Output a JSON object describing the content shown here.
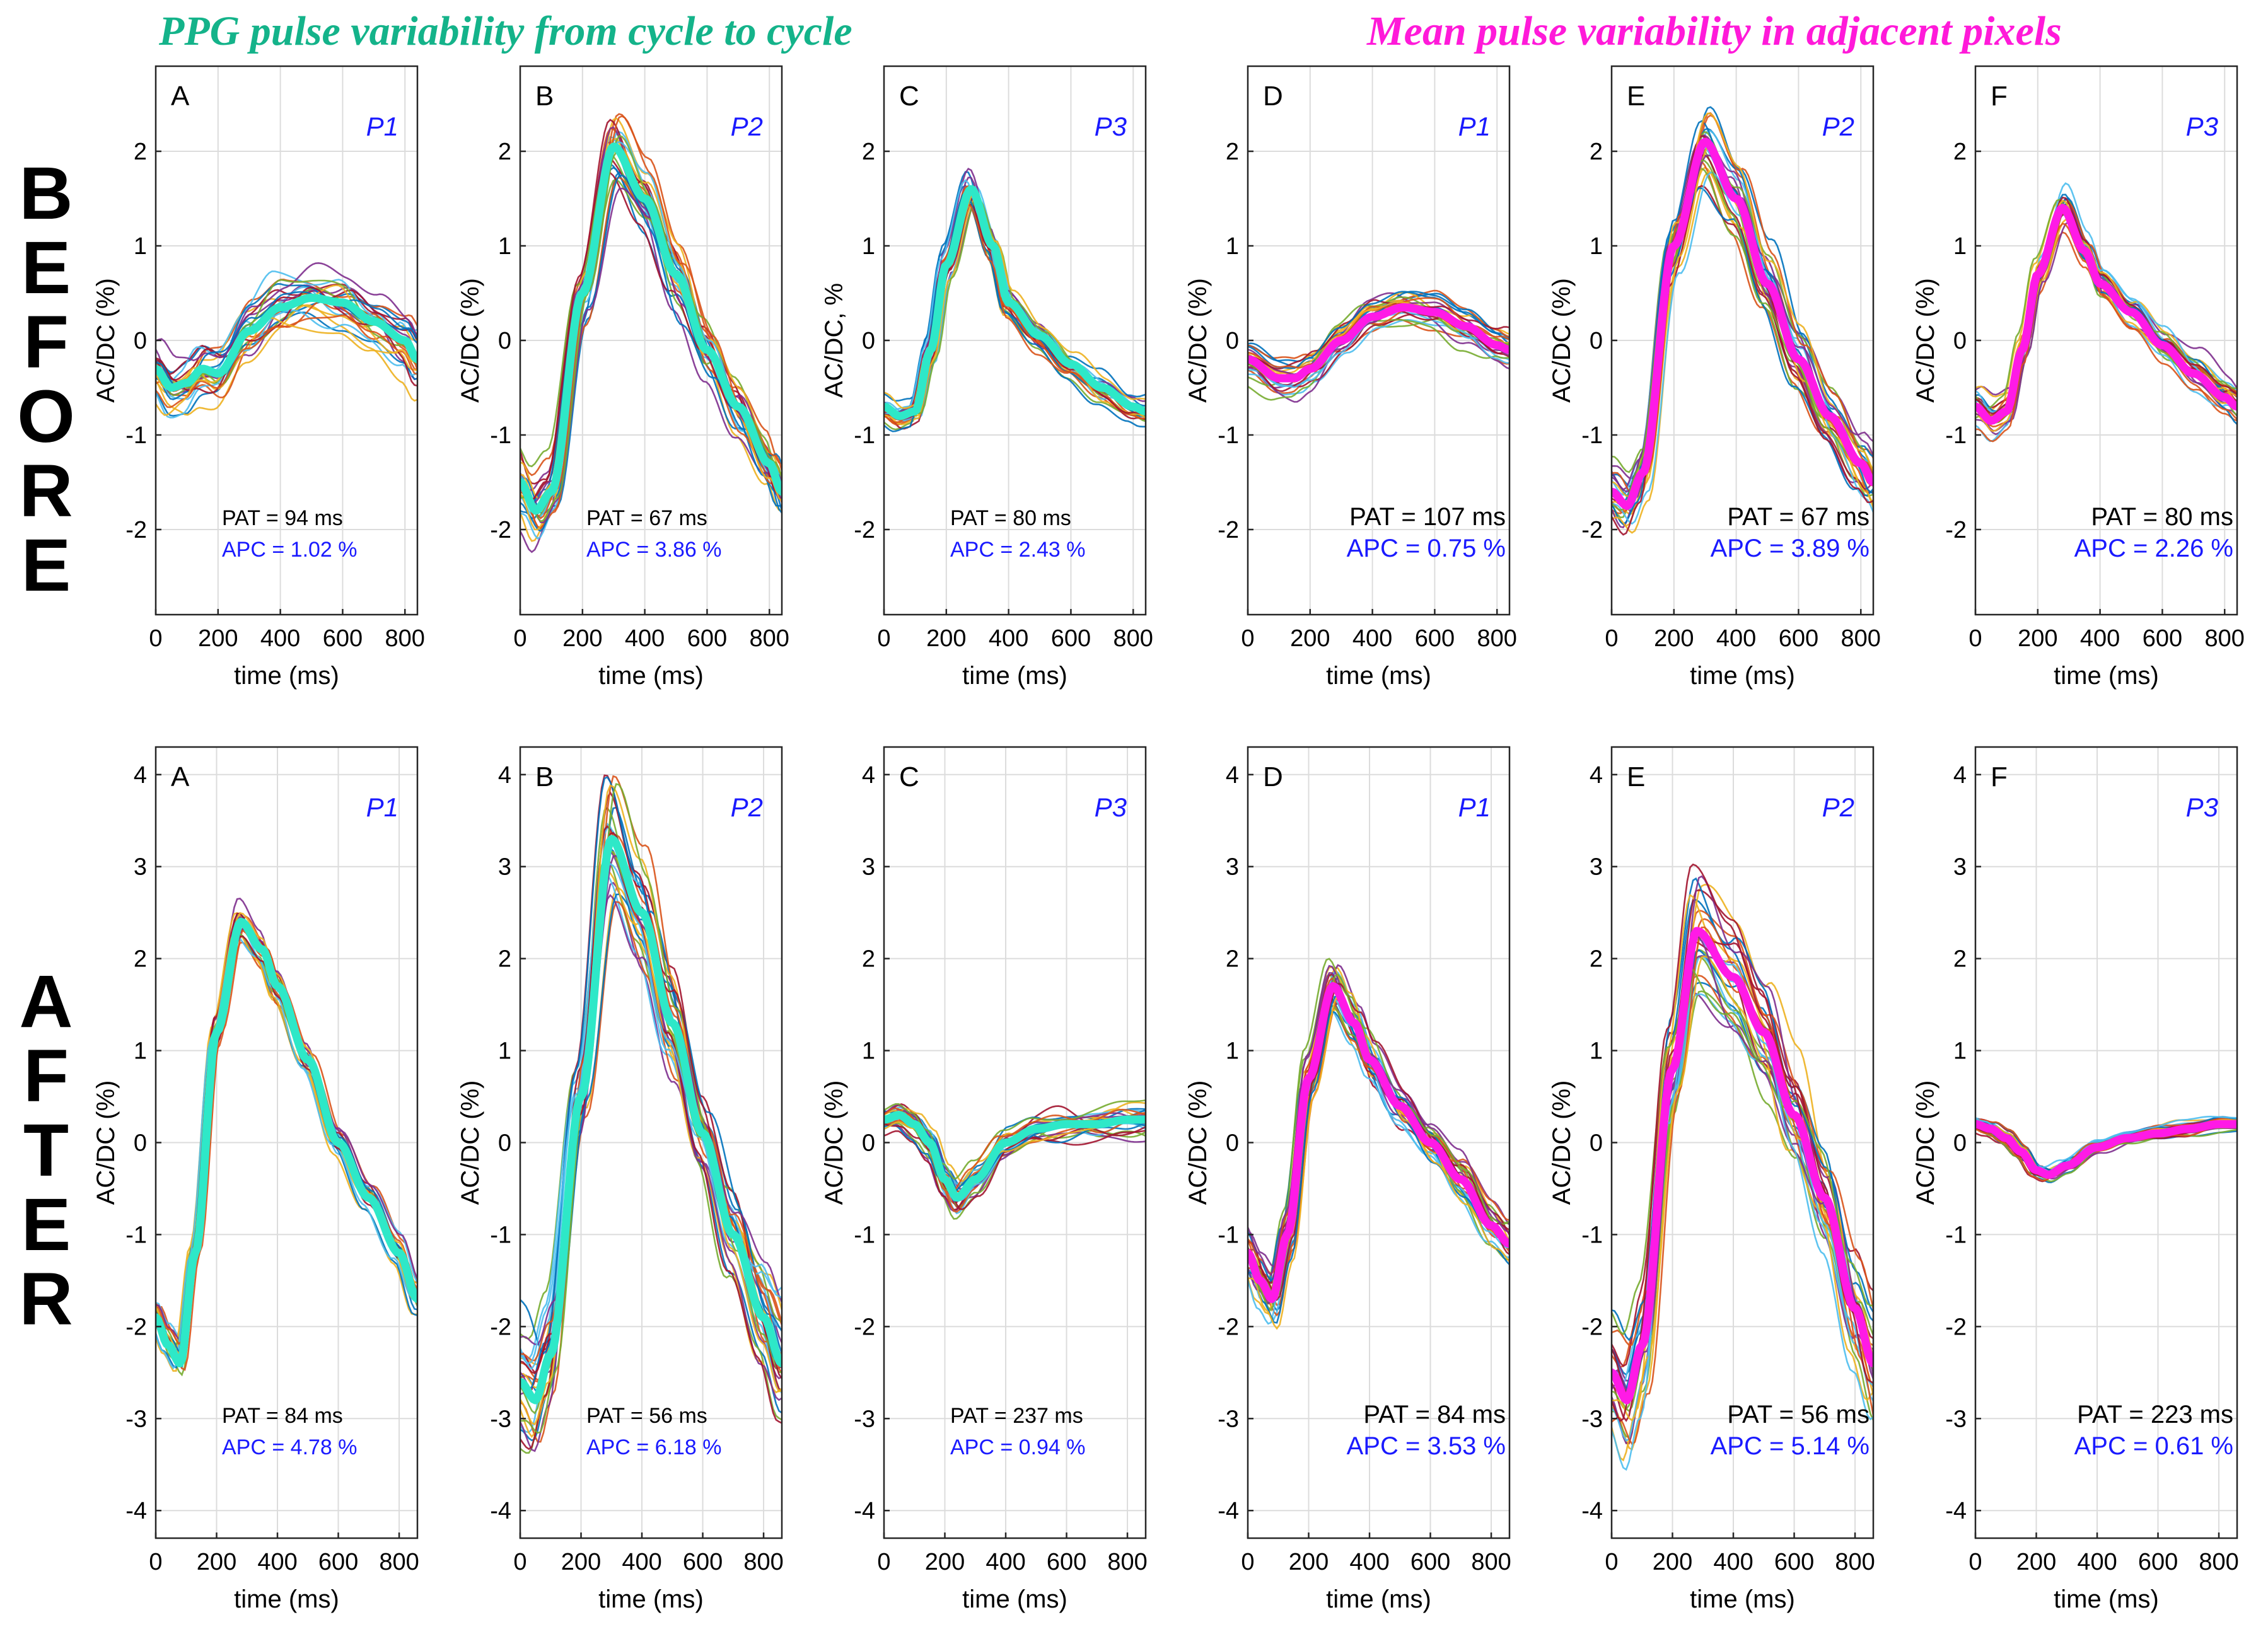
{
  "headers": {
    "left": "PPG pulse variability from cycle to cycle",
    "right": "Mean pulse variability in adjacent pixels",
    "left_color": "#14b38a",
    "right_color": "#ff1ad9"
  },
  "row_labels": {
    "before": [
      "B",
      "E",
      "F",
      "O",
      "R",
      "E"
    ],
    "after": [
      "A",
      "F",
      "T",
      "E",
      "R"
    ]
  },
  "colors": {
    "cyan_mean": "#2ee8c8",
    "magenta_mean": "#ff1ae6",
    "apc_text": "#1a1aff",
    "pname_text": "#1a1aff"
  },
  "chart_data": [
    {
      "type": "line",
      "row": "before",
      "letter": "A",
      "pname": "P1",
      "ylabel": "AC/DC (%)",
      "xlabel": "time (ms)",
      "xlim": [
        0,
        840
      ],
      "ylim": [
        -2.9,
        2.9
      ],
      "yticks": [
        -2,
        -1,
        0,
        1,
        2
      ],
      "xticks": [
        0,
        200,
        400,
        600,
        800
      ],
      "pat": "PAT = 94 ms",
      "apc": "APC = 1.02 %",
      "mean_style": "cyan",
      "spread": 0.32,
      "n_traces": 24,
      "mean": {
        "x": [
          0,
          50,
          100,
          150,
          200,
          300,
          400,
          500,
          600,
          700,
          800,
          840
        ],
        "y": [
          -0.3,
          -0.5,
          -0.45,
          -0.3,
          -0.35,
          0.1,
          0.35,
          0.45,
          0.4,
          0.2,
          0.0,
          -0.2
        ]
      }
    },
    {
      "type": "line",
      "row": "before",
      "letter": "B",
      "pname": "P2",
      "ylabel": "AC/DC (%)",
      "xlabel": "time (ms)",
      "xlim": [
        0,
        840
      ],
      "ylim": [
        -2.9,
        2.9
      ],
      "yticks": [
        -2,
        -1,
        0,
        1,
        2
      ],
      "xticks": [
        0,
        200,
        400,
        600,
        800
      ],
      "pat": "PAT = 67 ms",
      "apc": "APC = 3.86 %",
      "mean_style": "cyan",
      "spread": 0.3,
      "n_traces": 26,
      "mean": {
        "x": [
          0,
          50,
          100,
          200,
          300,
          400,
          500,
          600,
          700,
          800,
          840
        ],
        "y": [
          -1.5,
          -1.8,
          -1.6,
          0.5,
          2.05,
          1.5,
          0.7,
          -0.1,
          -0.7,
          -1.3,
          -1.6
        ]
      }
    },
    {
      "type": "line",
      "row": "before",
      "letter": "C",
      "pname": "P3",
      "ylabel": "AC/DC, %",
      "xlabel": "time (ms)",
      "xlim": [
        0,
        840
      ],
      "ylim": [
        -2.9,
        2.9
      ],
      "yticks": [
        -2,
        -1,
        0,
        1,
        2
      ],
      "xticks": [
        0,
        200,
        400,
        600,
        800
      ],
      "pat": "PAT = 80 ms",
      "apc": "APC = 2.43 %",
      "mean_style": "cyan",
      "spread": 0.15,
      "n_traces": 24,
      "mean": {
        "x": [
          0,
          50,
          100,
          150,
          200,
          280,
          350,
          400,
          500,
          600,
          700,
          800,
          840
        ],
        "y": [
          -0.7,
          -0.8,
          -0.75,
          -0.1,
          0.8,
          1.6,
          1.0,
          0.4,
          0.05,
          -0.25,
          -0.5,
          -0.7,
          -0.75
        ]
      }
    },
    {
      "type": "line",
      "row": "before",
      "letter": "D",
      "pname": "P1",
      "ylabel": "AC/DC (%)",
      "xlabel": "time (ms)",
      "xlim": [
        0,
        840
      ],
      "ylim": [
        -2.9,
        2.9
      ],
      "yticks": [
        -2,
        -1,
        0,
        1,
        2
      ],
      "xticks": [
        0,
        200,
        400,
        600,
        800
      ],
      "pat": "PAT = 107 ms",
      "apc": "APC = 0.75 %",
      "mean_style": "magenta",
      "spread": 0.18,
      "n_traces": 24,
      "mean": {
        "x": [
          0,
          100,
          150,
          200,
          300,
          400,
          500,
          600,
          700,
          800,
          840
        ],
        "y": [
          -0.2,
          -0.4,
          -0.4,
          -0.3,
          0.0,
          0.25,
          0.35,
          0.3,
          0.15,
          -0.05,
          -0.1
        ]
      }
    },
    {
      "type": "line",
      "row": "before",
      "letter": "E",
      "pname": "P2",
      "ylabel": "AC/DC (%)",
      "xlabel": "time (ms)",
      "xlim": [
        0,
        840
      ],
      "ylim": [
        -2.9,
        2.9
      ],
      "yticks": [
        -2,
        -1,
        0,
        1,
        2
      ],
      "xticks": [
        0,
        200,
        400,
        600,
        800
      ],
      "pat": "PAT = 67 ms",
      "apc": "APC = 3.89 %",
      "mean_style": "magenta",
      "spread": 0.3,
      "n_traces": 26,
      "mean": {
        "x": [
          0,
          50,
          100,
          200,
          300,
          400,
          500,
          600,
          700,
          800,
          840
        ],
        "y": [
          -1.6,
          -1.75,
          -1.4,
          1.0,
          2.1,
          1.5,
          0.6,
          -0.2,
          -0.8,
          -1.3,
          -1.5
        ]
      }
    },
    {
      "type": "line",
      "row": "before",
      "letter": "F",
      "pname": "P3",
      "ylabel": "AC/DC (%)",
      "xlabel": "time (ms)",
      "xlim": [
        0,
        840
      ],
      "ylim": [
        -2.9,
        2.9
      ],
      "yticks": [
        -2,
        -1,
        0,
        1,
        2
      ],
      "xticks": [
        0,
        200,
        400,
        600,
        800
      ],
      "pat": "PAT = 80 ms",
      "apc": "APC = 2.26 %",
      "mean_style": "magenta",
      "spread": 0.2,
      "n_traces": 24,
      "mean": {
        "x": [
          0,
          50,
          100,
          150,
          200,
          280,
          350,
          400,
          500,
          600,
          700,
          800,
          840
        ],
        "y": [
          -0.7,
          -0.85,
          -0.75,
          -0.1,
          0.7,
          1.4,
          0.95,
          0.6,
          0.3,
          -0.05,
          -0.35,
          -0.6,
          -0.7
        ]
      }
    },
    {
      "type": "line",
      "row": "after",
      "letter": "A",
      "pname": "P1",
      "ylabel": "AC/DC (%)",
      "xlabel": "time (ms)",
      "xlim": [
        0,
        860
      ],
      "ylim": [
        -4.3,
        4.3
      ],
      "yticks": [
        -4,
        -3,
        -2,
        -1,
        0,
        1,
        2,
        3,
        4
      ],
      "xticks": [
        0,
        200,
        400,
        600,
        800
      ],
      "pat": "PAT = 84 ms",
      "apc": "APC = 4.78 %",
      "mean_style": "cyan",
      "spread": 0.15,
      "n_traces": 24,
      "mean": {
        "x": [
          0,
          40,
          80,
          130,
          200,
          280,
          350,
          400,
          500,
          600,
          700,
          800,
          860
        ],
        "y": [
          -1.9,
          -2.2,
          -2.4,
          -1.2,
          1.2,
          2.4,
          2.1,
          1.7,
          0.9,
          0.0,
          -0.6,
          -1.2,
          -1.7
        ]
      }
    },
    {
      "type": "line",
      "row": "after",
      "letter": "B",
      "pname": "P2",
      "ylabel": "AC/DC (%)",
      "xlabel": "time (ms)",
      "xlim": [
        0,
        860
      ],
      "ylim": [
        -4.3,
        4.3
      ],
      "yticks": [
        -4,
        -3,
        -2,
        -1,
        0,
        1,
        2,
        3,
        4
      ],
      "xticks": [
        0,
        200,
        400,
        600,
        800
      ],
      "pat": "PAT = 56 ms",
      "apc": "APC = 6.18 %",
      "mean_style": "cyan",
      "spread": 0.45,
      "n_traces": 28,
      "mean": {
        "x": [
          0,
          50,
          100,
          200,
          300,
          400,
          500,
          600,
          700,
          800,
          860
        ],
        "y": [
          -2.6,
          -2.8,
          -2.3,
          0.5,
          3.3,
          2.5,
          1.3,
          0.1,
          -1.0,
          -1.9,
          -2.4
        ]
      }
    },
    {
      "type": "line",
      "row": "after",
      "letter": "C",
      "pname": "P3",
      "ylabel": "AC/DC (%)",
      "xlabel": "time (ms)",
      "xlim": [
        0,
        860
      ],
      "ylim": [
        -4.3,
        4.3
      ],
      "yticks": [
        -4,
        -3,
        -2,
        -1,
        0,
        1,
        2,
        3,
        4
      ],
      "xticks": [
        0,
        200,
        400,
        600,
        800
      ],
      "pat": "PAT = 237 ms",
      "apc": "APC = 0.94 %",
      "mean_style": "cyan",
      "spread": 0.18,
      "n_traces": 24,
      "mean": {
        "x": [
          0,
          50,
          100,
          150,
          200,
          240,
          300,
          400,
          500,
          600,
          700,
          800,
          860
        ],
        "y": [
          0.25,
          0.3,
          0.2,
          0.0,
          -0.4,
          -0.6,
          -0.4,
          0.0,
          0.15,
          0.2,
          0.2,
          0.25,
          0.25
        ]
      }
    },
    {
      "type": "line",
      "row": "after",
      "letter": "D",
      "pname": "P1",
      "ylabel": "AC/DC (%)",
      "xlabel": "time (ms)",
      "xlim": [
        0,
        860
      ],
      "ylim": [
        -4.3,
        4.3
      ],
      "yticks": [
        -4,
        -3,
        -2,
        -1,
        0,
        1,
        2,
        3,
        4
      ],
      "xticks": [
        0,
        200,
        400,
        600,
        800
      ],
      "pat": "PAT = 84 ms",
      "apc": "APC = 3.53 %",
      "mean_style": "magenta",
      "spread": 0.25,
      "n_traces": 26,
      "mean": {
        "x": [
          0,
          40,
          80,
          130,
          200,
          280,
          350,
          400,
          500,
          600,
          700,
          800,
          860
        ],
        "y": [
          -1.2,
          -1.5,
          -1.7,
          -1.0,
          0.7,
          1.7,
          1.3,
          0.9,
          0.4,
          0.0,
          -0.4,
          -0.9,
          -1.1
        ]
      }
    },
    {
      "type": "line",
      "row": "after",
      "letter": "E",
      "pname": "P2",
      "ylabel": "AC/DC (%)",
      "xlabel": "time (ms)",
      "xlim": [
        0,
        860
      ],
      "ylim": [
        -4.3,
        4.3
      ],
      "yticks": [
        -4,
        -3,
        -2,
        -1,
        0,
        1,
        2,
        3,
        4
      ],
      "xticks": [
        0,
        200,
        400,
        600,
        800
      ],
      "pat": "PAT = 56 ms",
      "apc": "APC = 5.14 %",
      "mean_style": "magenta",
      "spread": 0.5,
      "n_traces": 28,
      "mean": {
        "x": [
          0,
          50,
          100,
          200,
          280,
          400,
          500,
          600,
          700,
          800,
          860
        ],
        "y": [
          -2.5,
          -2.8,
          -2.2,
          0.8,
          2.3,
          1.8,
          1.2,
          0.3,
          -0.6,
          -1.8,
          -2.4
        ]
      }
    },
    {
      "type": "line",
      "row": "after",
      "letter": "F",
      "pname": "P3",
      "ylabel": "AC/DC (%)",
      "xlabel": "time (ms)",
      "xlim": [
        0,
        860
      ],
      "ylim": [
        -4.3,
        4.3
      ],
      "yticks": [
        -4,
        -3,
        -2,
        -1,
        0,
        1,
        2,
        3,
        4
      ],
      "xticks": [
        0,
        200,
        400,
        600,
        800
      ],
      "pat": "PAT = 223 ms",
      "apc": "APC = 0.61 %",
      "mean_style": "magenta",
      "spread": 0.08,
      "n_traces": 24,
      "mean": {
        "x": [
          0,
          50,
          100,
          150,
          200,
          240,
          300,
          400,
          500,
          600,
          700,
          800,
          860
        ],
        "y": [
          0.2,
          0.15,
          0.05,
          -0.1,
          -0.3,
          -0.35,
          -0.25,
          -0.05,
          0.05,
          0.1,
          0.15,
          0.2,
          0.2
        ]
      }
    }
  ]
}
